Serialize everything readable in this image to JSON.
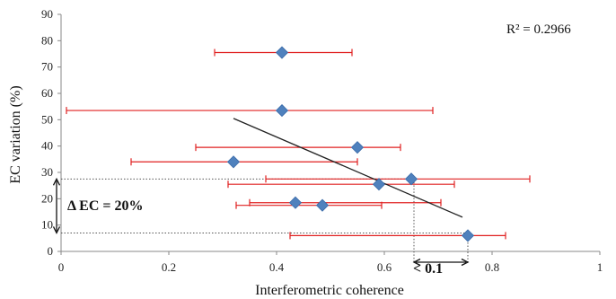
{
  "chart_data": {
    "type": "scatter",
    "xlabel": "Interferometric coherence",
    "ylabel": "EC variation (%)",
    "xlim": [
      0,
      1
    ],
    "ylim": [
      0,
      90
    ],
    "x_ticks": [
      0,
      0.2,
      0.4,
      0.6,
      0.8,
      1
    ],
    "x_tick_labels": [
      "0",
      "0.2",
      "0.4",
      "0.6",
      "0.8",
      "1"
    ],
    "y_ticks": [
      0,
      10,
      20,
      30,
      40,
      50,
      60,
      70,
      80,
      90
    ],
    "y_tick_labels": [
      "0",
      "10",
      "20",
      "30",
      "40",
      "50",
      "60",
      "70",
      "80",
      "90"
    ],
    "marker_color": "#4f81bd",
    "error_bar_color": "#e02020",
    "trendline_color": "#222222",
    "points": [
      {
        "x": 0.41,
        "y": 75.5,
        "xerr_low": 0.285,
        "xerr_high": 0.54
      },
      {
        "x": 0.41,
        "y": 53.5,
        "xerr_low": 0.01,
        "xerr_high": 0.69
      },
      {
        "x": 0.55,
        "y": 39.5,
        "xerr_low": 0.25,
        "xerr_high": 0.63
      },
      {
        "x": 0.32,
        "y": 34.0,
        "xerr_low": 0.13,
        "xerr_high": 0.55
      },
      {
        "x": 0.59,
        "y": 25.5,
        "xerr_low": 0.31,
        "xerr_high": 0.73
      },
      {
        "x": 0.65,
        "y": 27.5,
        "xerr_low": 0.38,
        "xerr_high": 0.87
      },
      {
        "x": 0.435,
        "y": 18.5,
        "xerr_low": 0.35,
        "xerr_high": 0.705
      },
      {
        "x": 0.485,
        "y": 17.5,
        "xerr_low": 0.325,
        "xerr_high": 0.595
      },
      {
        "x": 0.755,
        "y": 6.0,
        "xerr_low": 0.425,
        "xerr_high": 0.825
      }
    ],
    "trendline": {
      "x1": 0.32,
      "y1": 50.5,
      "x2": 0.745,
      "y2": 13.0
    },
    "r_squared_text": "R² = 0.2966",
    "annotations": {
      "delta_ec": "Δ EC = 20%",
      "delta_coherence": "< 0.1"
    },
    "reference_lines": {
      "y_upper": 27.5,
      "y_lower": 7.0,
      "x_left": 0.655,
      "x_right": 0.755
    }
  }
}
